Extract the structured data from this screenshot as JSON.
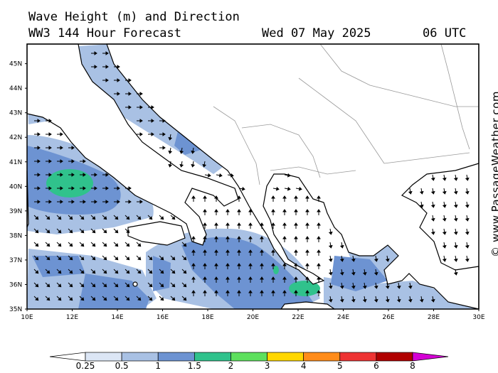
{
  "header": {
    "title": "Wave Height (m) and Direction",
    "subtitle": "WW3 144 Hour Forecast",
    "date": "Wed 07 May 2025",
    "time": "06 UTC"
  },
  "credit": "© www.PassageWeather.com",
  "map": {
    "region": "Central Mediterranean / Adriatic / Ionian / Aegean",
    "lon_range": [
      10,
      30
    ],
    "lat_range": [
      35,
      45.8
    ],
    "lat_labels": [
      "45N",
      "44N",
      "43N",
      "42N",
      "41N",
      "40N",
      "39N",
      "38N",
      "37N",
      "36N",
      "35N"
    ],
    "lon_labels": [
      "10E",
      "12E",
      "14E",
      "16E",
      "18E",
      "20E",
      "22E",
      "24E",
      "26E",
      "28E",
      "30E"
    ]
  },
  "legend": {
    "labels": [
      "0.25",
      "0.5",
      "1",
      "1.5",
      "2",
      "3",
      "4",
      "5",
      "6",
      "8"
    ],
    "colors": [
      "#ffffff",
      "#dce6f5",
      "#a9c1e4",
      "#6d93d2",
      "#30c28c",
      "#5de05d",
      "#ffd700",
      "#ff8c1a",
      "#ee3333",
      "#b00000",
      "#d400d4"
    ]
  }
}
